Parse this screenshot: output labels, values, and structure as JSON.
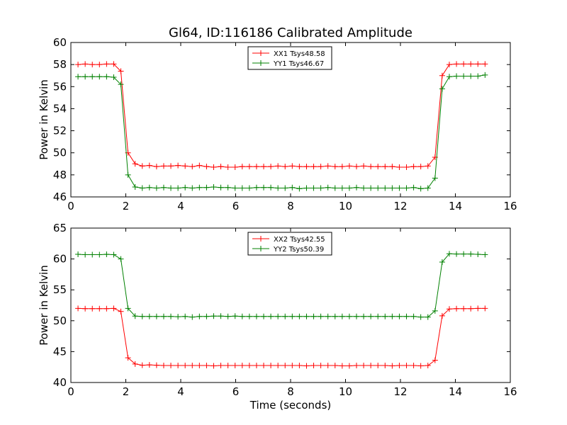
{
  "title": "Gl64, ID:116186 Calibrated Amplitude",
  "chart_data": [
    {
      "type": "line",
      "title": "Gl64, ID:116186 Calibrated Amplitude",
      "xlabel": "",
      "ylabel": "Power in Kelvin",
      "xlim": [
        0,
        16
      ],
      "ylim": [
        46,
        60
      ],
      "xticks": [
        0,
        2,
        4,
        6,
        8,
        10,
        12,
        14,
        16
      ],
      "yticks": [
        46,
        48,
        50,
        52,
        54,
        56,
        58,
        60
      ],
      "grid": false,
      "legend": "top-center",
      "x": [
        0.26,
        0.52,
        0.78,
        1.04,
        1.3,
        1.56,
        1.82,
        2.08,
        2.34,
        2.6,
        2.86,
        3.12,
        3.38,
        3.64,
        3.9,
        4.16,
        4.42,
        4.68,
        4.94,
        5.2,
        5.46,
        5.72,
        5.98,
        6.24,
        6.5,
        6.76,
        7.02,
        7.28,
        7.54,
        7.8,
        8.06,
        8.32,
        8.58,
        8.84,
        9.1,
        9.36,
        9.62,
        9.88,
        10.14,
        10.4,
        10.66,
        10.92,
        11.18,
        11.44,
        11.7,
        11.96,
        12.22,
        12.48,
        12.74,
        13.0,
        13.26,
        13.52,
        13.78,
        14.04,
        14.3,
        14.56,
        14.82,
        15.08
      ],
      "series": [
        {
          "name": "XX1 Tsys48.58",
          "color": "#ff0000",
          "values": [
            58.0,
            58.05,
            58.0,
            58.0,
            58.05,
            58.05,
            57.4,
            50.0,
            49.0,
            48.8,
            48.85,
            48.75,
            48.8,
            48.8,
            48.85,
            48.8,
            48.75,
            48.85,
            48.75,
            48.7,
            48.75,
            48.7,
            48.7,
            48.75,
            48.75,
            48.75,
            48.75,
            48.75,
            48.8,
            48.75,
            48.8,
            48.75,
            48.75,
            48.75,
            48.75,
            48.8,
            48.75,
            48.75,
            48.8,
            48.75,
            48.8,
            48.75,
            48.75,
            48.75,
            48.75,
            48.7,
            48.7,
            48.75,
            48.75,
            48.8,
            49.6,
            57.0,
            58.0,
            58.05,
            58.05,
            58.05,
            58.05,
            58.05
          ]
        },
        {
          "name": "YY1 Tsys46.67",
          "color": "#008000",
          "values": [
            56.9,
            56.9,
            56.9,
            56.9,
            56.9,
            56.85,
            56.2,
            48.0,
            46.9,
            46.8,
            46.85,
            46.8,
            46.85,
            46.8,
            46.8,
            46.85,
            46.8,
            46.85,
            46.85,
            46.9,
            46.85,
            46.85,
            46.8,
            46.8,
            46.8,
            46.85,
            46.85,
            46.85,
            46.8,
            46.8,
            46.85,
            46.75,
            46.8,
            46.8,
            46.8,
            46.85,
            46.8,
            46.8,
            46.8,
            46.85,
            46.8,
            46.8,
            46.8,
            46.8,
            46.8,
            46.8,
            46.8,
            46.85,
            46.75,
            46.8,
            47.7,
            55.8,
            56.9,
            56.95,
            56.95,
            56.95,
            56.95,
            57.05
          ]
        }
      ]
    },
    {
      "type": "line",
      "title": "",
      "xlabel": "Time (seconds)",
      "ylabel": "Power in Kelvin",
      "xlim": [
        0,
        16
      ],
      "ylim": [
        40,
        65
      ],
      "xticks": [
        0,
        2,
        4,
        6,
        8,
        10,
        12,
        14,
        16
      ],
      "yticks": [
        40,
        45,
        50,
        55,
        60,
        65
      ],
      "grid": false,
      "legend": "top-center",
      "x": [
        0.26,
        0.52,
        0.78,
        1.04,
        1.3,
        1.56,
        1.82,
        2.08,
        2.34,
        2.6,
        2.86,
        3.12,
        3.38,
        3.64,
        3.9,
        4.16,
        4.42,
        4.68,
        4.94,
        5.2,
        5.46,
        5.72,
        5.98,
        6.24,
        6.5,
        6.76,
        7.02,
        7.28,
        7.54,
        7.8,
        8.06,
        8.32,
        8.58,
        8.84,
        9.1,
        9.36,
        9.62,
        9.88,
        10.14,
        10.4,
        10.66,
        10.92,
        11.18,
        11.44,
        11.7,
        11.96,
        12.22,
        12.48,
        12.74,
        13.0,
        13.26,
        13.52,
        13.78,
        14.04,
        14.3,
        14.56,
        14.82,
        15.08
      ],
      "series": [
        {
          "name": "XX2 Tsys42.55",
          "color": "#ff0000",
          "values": [
            52.0,
            51.95,
            51.95,
            51.95,
            51.95,
            52.0,
            51.5,
            44.0,
            43.0,
            42.8,
            42.85,
            42.8,
            42.75,
            42.75,
            42.75,
            42.75,
            42.75,
            42.75,
            42.75,
            42.7,
            42.75,
            42.75,
            42.75,
            42.75,
            42.75,
            42.75,
            42.75,
            42.75,
            42.75,
            42.75,
            42.75,
            42.75,
            42.7,
            42.75,
            42.75,
            42.75,
            42.75,
            42.7,
            42.7,
            42.75,
            42.75,
            42.75,
            42.75,
            42.75,
            42.7,
            42.75,
            42.75,
            42.75,
            42.7,
            42.75,
            43.6,
            50.8,
            51.9,
            51.95,
            51.95,
            51.95,
            52.0,
            52.0
          ]
        },
        {
          "name": "YY2 Tsys50.39",
          "color": "#008000",
          "values": [
            60.75,
            60.7,
            60.7,
            60.7,
            60.75,
            60.7,
            60.0,
            52.0,
            50.75,
            50.7,
            50.7,
            50.7,
            50.7,
            50.7,
            50.65,
            50.7,
            50.6,
            50.7,
            50.7,
            50.75,
            50.75,
            50.7,
            50.75,
            50.7,
            50.7,
            50.7,
            50.7,
            50.7,
            50.7,
            50.7,
            50.7,
            50.7,
            50.7,
            50.7,
            50.7,
            50.7,
            50.7,
            50.7,
            50.7,
            50.7,
            50.7,
            50.7,
            50.7,
            50.7,
            50.7,
            50.7,
            50.7,
            50.7,
            50.6,
            50.6,
            51.6,
            59.5,
            60.85,
            60.8,
            60.8,
            60.8,
            60.75,
            60.7
          ]
        }
      ]
    }
  ]
}
